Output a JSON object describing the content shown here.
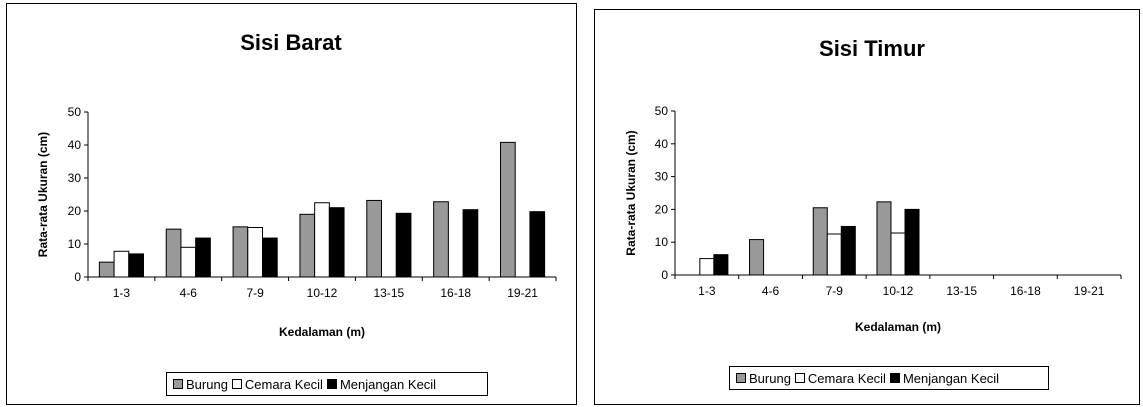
{
  "chart_data": [
    {
      "type": "bar",
      "title": "Sisi Barat",
      "xlabel": "Kedalaman (m)",
      "ylabel": "Rata-rata Ukuran (cm)",
      "ylim": [
        0,
        50
      ],
      "yticks": [
        "0",
        "10",
        "20",
        "30",
        "40",
        "50"
      ],
      "categories": [
        "1-3",
        "4-6",
        "7-9",
        "10-12",
        "13-15",
        "16-18",
        "19-21"
      ],
      "series": [
        {
          "name": "Burung",
          "color": "#999999",
          "values": [
            4.5,
            14.5,
            15.2,
            19,
            23.2,
            22.8,
            40.8
          ]
        },
        {
          "name": "Cemara Kecil",
          "color": "#ffffff",
          "values": [
            7.8,
            9,
            15,
            22.5,
            null,
            null,
            null
          ]
        },
        {
          "name": "Menjangan Kecil",
          "color": "#000000",
          "values": [
            7,
            11.8,
            11.8,
            21,
            19.3,
            20.4,
            19.8
          ]
        }
      ],
      "legend_position": "bottom",
      "grid": false
    },
    {
      "type": "bar",
      "title": "Sisi Timur",
      "xlabel": "Kedalaman (m)",
      "ylabel": "Rata-rata Ukuran (cm)",
      "ylim": [
        0,
        50
      ],
      "yticks": [
        "0",
        "10",
        "20",
        "30",
        "40",
        "50"
      ],
      "categories": [
        "1-3",
        "4-6",
        "7-9",
        "10-12",
        "13-15",
        "16-18",
        "19-21"
      ],
      "series": [
        {
          "name": "Burung",
          "color": "#999999",
          "values": [
            null,
            10.8,
            20.5,
            22.3,
            null,
            null,
            null
          ]
        },
        {
          "name": "Cemara Kecil",
          "color": "#ffffff",
          "values": [
            5,
            null,
            12.5,
            12.8,
            null,
            null,
            null
          ]
        },
        {
          "name": "Menjangan Kecil",
          "color": "#000000",
          "values": [
            6.2,
            null,
            14.8,
            20,
            null,
            null,
            null
          ]
        }
      ],
      "legend_position": "bottom",
      "grid": false
    }
  ]
}
